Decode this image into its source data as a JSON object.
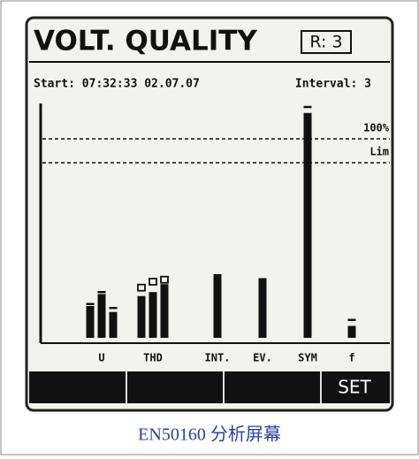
{
  "screen": {
    "title": "VOLT. QUALITY",
    "range": "R: 3",
    "start": "Start: 07:32:33 02.07.07",
    "interval": "Interval: 3",
    "reference_lines": [
      {
        "label": "100%",
        "value": 100
      },
      {
        "label": "Lim",
        "value": 88
      }
    ],
    "groups": [
      {
        "label": "U",
        "values": [
          16,
          22,
          13
        ],
        "max": [
          17,
          23,
          15
        ],
        "marker": "dash"
      },
      {
        "label": "THD",
        "values": [
          21,
          23,
          27
        ],
        "max": [
          25,
          28,
          29
        ],
        "marker": "square"
      },
      {
        "label": "INT.",
        "values": [
          32
        ]
      },
      {
        "label": "EV.",
        "values": [
          30
        ]
      },
      {
        "label": "SYM",
        "values": [
          113
        ],
        "max": [
          116
        ],
        "marker": "dash"
      },
      {
        "label": "f",
        "values": [
          6
        ],
        "max": [
          9
        ],
        "marker": "dash"
      }
    ],
    "softkey": "SET",
    "caption": "EN50160 分析屏幕"
  }
}
